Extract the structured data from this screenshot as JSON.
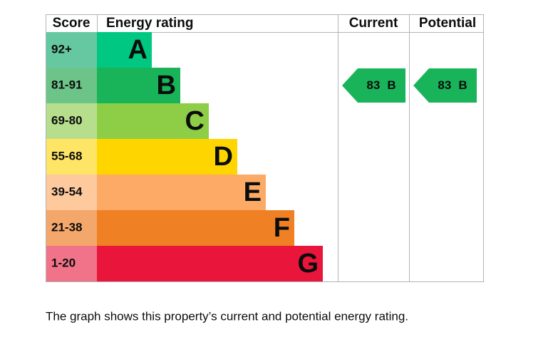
{
  "header": {
    "score": "Score",
    "rating": "Energy rating",
    "current": "Current",
    "potential": "Potential"
  },
  "bands": [
    {
      "score": "92+",
      "letter": "A",
      "color": "#00c781",
      "light": "#66c8a0"
    },
    {
      "score": "81-91",
      "letter": "B",
      "color": "#19b459",
      "light": "#6dc488"
    },
    {
      "score": "69-80",
      "letter": "C",
      "color": "#8dce46",
      "light": "#b6de8c"
    },
    {
      "score": "55-68",
      "letter": "D",
      "color": "#ffd500",
      "light": "#ffe566"
    },
    {
      "score": "39-54",
      "letter": "E",
      "color": "#fcaa65",
      "light": "#fdc99d"
    },
    {
      "score": "21-38",
      "letter": "F",
      "color": "#ef8023",
      "light": "#f4a76b"
    },
    {
      "score": "1-20",
      "letter": "G",
      "color": "#e9153b",
      "light": "#f1738a"
    }
  ],
  "current": {
    "score": 83,
    "letter": "B"
  },
  "potential": {
    "score": 83,
    "letter": "B"
  },
  "caption": "The graph shows this property’s current and potential energy rating."
}
